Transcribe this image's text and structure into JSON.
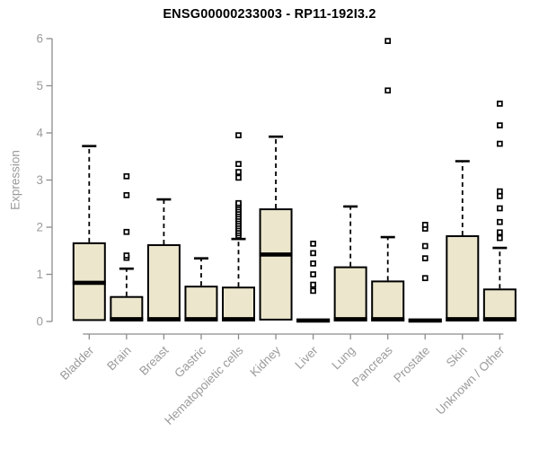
{
  "chart_data": {
    "type": "boxplot",
    "title": "ENSG00000233003 - RP11-192I3.2",
    "ylabel": "Expression",
    "xlabel": "",
    "ylim": [
      0,
      6
    ],
    "yticks": [
      0,
      1,
      2,
      3,
      4,
      5,
      6
    ],
    "grid": false,
    "legend": "none",
    "categories": [
      "Bladder",
      "Brain",
      "Breast",
      "Gastric",
      "Hematopoietic cells",
      "Kidney",
      "Liver",
      "Lung",
      "Pancreas",
      "Prostate",
      "Skin",
      "Unknown / Other"
    ],
    "series": [
      {
        "name": "Bladder",
        "q1": 0.03,
        "median": 0.82,
        "q3": 1.66,
        "whisker_high": 3.72,
        "outliers": []
      },
      {
        "name": "Brain",
        "q1": 0.02,
        "median": 0.05,
        "q3": 0.52,
        "whisker_high": 1.12,
        "outliers": [
          1.35,
          1.4,
          1.9,
          2.68,
          3.08
        ]
      },
      {
        "name": "Breast",
        "q1": 0.02,
        "median": 0.05,
        "q3": 1.62,
        "whisker_high": 2.59,
        "outliers": []
      },
      {
        "name": "Gastric",
        "q1": 0.02,
        "median": 0.05,
        "q3": 0.74,
        "whisker_high": 1.34,
        "outliers": []
      },
      {
        "name": "Hematopoietic cells",
        "q1": 0.02,
        "median": 0.05,
        "q3": 0.72,
        "whisker_high": 1.75,
        "outliers": [
          1.82,
          1.87,
          1.92,
          1.97,
          2.02,
          2.07,
          2.12,
          2.17,
          2.22,
          2.27,
          2.32,
          2.37,
          2.42,
          2.47,
          2.51,
          3.05,
          3.17,
          3.34,
          3.95
        ]
      },
      {
        "name": "Kidney",
        "q1": 0.04,
        "median": 1.42,
        "q3": 2.38,
        "whisker_high": 3.92,
        "outliers": []
      },
      {
        "name": "Liver",
        "q1": 0.0,
        "median": 0.02,
        "q3": 0.04,
        "whisker_high": 0.04,
        "outliers": [
          0.65,
          0.78,
          1.0,
          1.23,
          1.45,
          1.65
        ]
      },
      {
        "name": "Lung",
        "q1": 0.02,
        "median": 0.05,
        "q3": 1.15,
        "whisker_high": 2.44,
        "outliers": []
      },
      {
        "name": "Pancreas",
        "q1": 0.02,
        "median": 0.05,
        "q3": 0.85,
        "whisker_high": 1.79,
        "outliers": [
          4.9,
          5.95
        ]
      },
      {
        "name": "Prostate",
        "q1": 0.0,
        "median": 0.02,
        "q3": 0.04,
        "whisker_high": 0.04,
        "outliers": [
          0.92,
          1.34,
          1.6,
          1.97,
          2.05
        ]
      },
      {
        "name": "Skin",
        "q1": 0.02,
        "median": 0.05,
        "q3": 1.81,
        "whisker_high": 3.4,
        "outliers": []
      },
      {
        "name": "Unknown / Other",
        "q1": 0.02,
        "median": 0.05,
        "q3": 0.68,
        "whisker_high": 1.56,
        "outliers": [
          1.77,
          1.89,
          2.11,
          2.4,
          2.66,
          2.76,
          3.77,
          4.16,
          4.62
        ]
      }
    ],
    "colors": {
      "box_fill": "#ece7cc",
      "box_stroke": "#000000",
      "median": "#000000",
      "whisker": "#000000",
      "outlier_stroke": "#000000",
      "outlier_fill": "#ffffff",
      "axis_line": "#8c8c8c",
      "tick_text": "#9b9b9b",
      "title_text": "#000000"
    }
  }
}
